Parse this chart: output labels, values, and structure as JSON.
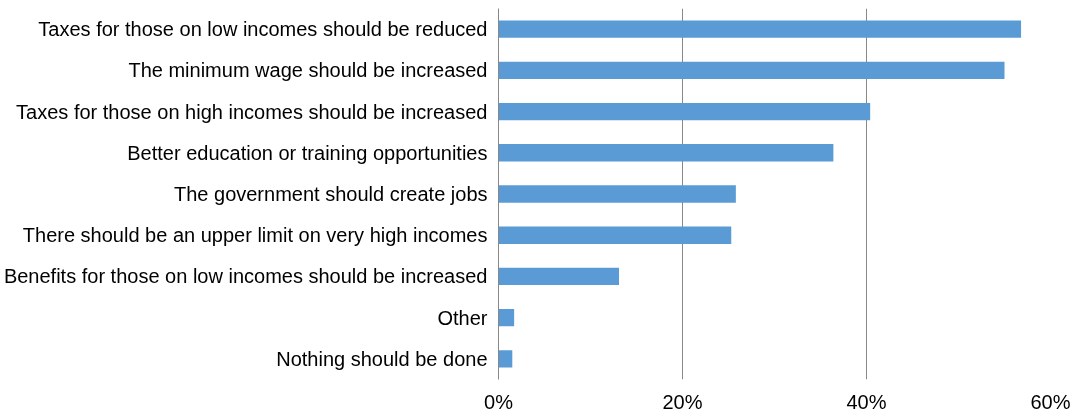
{
  "chart_data": {
    "type": "bar",
    "orientation": "horizontal",
    "categories": [
      "Taxes for those on low incomes should be reduced",
      "The minimum wage should be increased",
      "Taxes for those on high incomes should be increased",
      "Better education or training opportunities",
      "The government should create jobs",
      "There should be an upper limit on very high incomes",
      "Benefits for those on low incomes should be increased",
      "Other",
      "Nothing should be done"
    ],
    "values": [
      56.8,
      55.0,
      40.4,
      36.4,
      25.8,
      25.3,
      13.1,
      1.7,
      1.5
    ],
    "color": "#5b9bd5",
    "xlim": [
      0,
      60
    ],
    "xticks": [
      {
        "value": 0,
        "label": "0%"
      },
      {
        "value": 20,
        "label": "20%"
      },
      {
        "value": 40,
        "label": "40%"
      },
      {
        "value": 60,
        "label": "60%"
      }
    ],
    "grid": "x"
  }
}
